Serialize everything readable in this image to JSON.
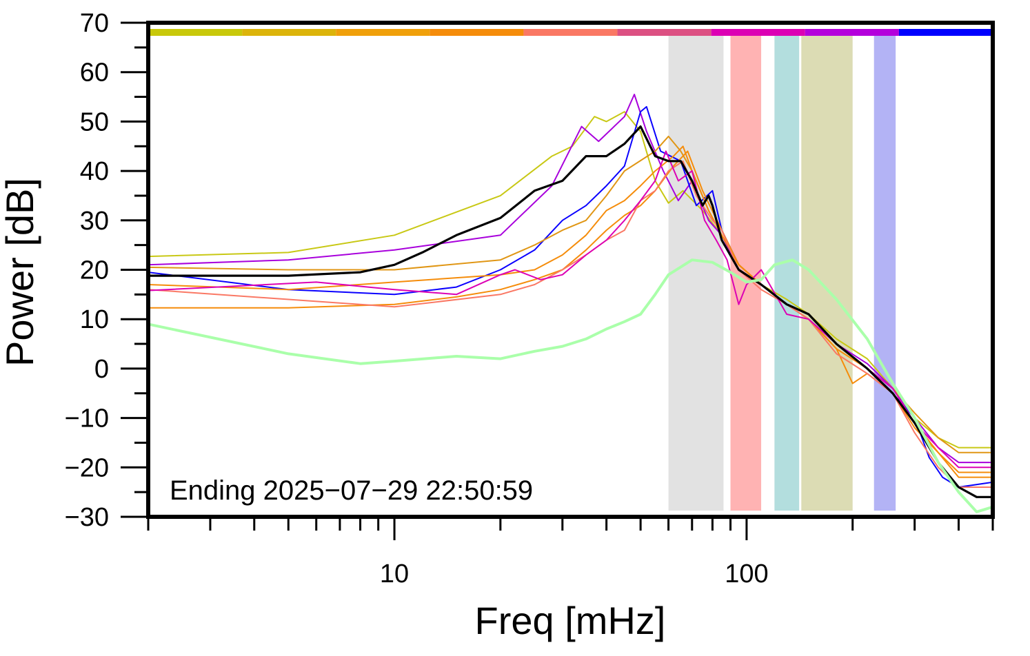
{
  "chart_data": {
    "type": "line",
    "xlabel": "Freq [mHz]",
    "ylabel": "Power [dB]",
    "xscale": "log",
    "xlim": [
      2,
      500
    ],
    "ylim": [
      -30,
      70
    ],
    "x_tick_labels": [
      {
        "v": 10,
        "t": "10"
      },
      {
        "v": 100,
        "t": "100"
      }
    ],
    "y_tick_labels": [
      {
        "v": 70,
        "t": "70"
      },
      {
        "v": 60,
        "t": "60"
      },
      {
        "v": 50,
        "t": "50"
      },
      {
        "v": 40,
        "t": "40"
      },
      {
        "v": 30,
        "t": "30"
      },
      {
        "v": 20,
        "t": "20"
      },
      {
        "v": 10,
        "t": "10"
      },
      {
        "v": 0,
        "t": "0"
      },
      {
        "v": -10,
        "t": "−10"
      },
      {
        "v": -20,
        "t": "−20"
      },
      {
        "v": -30,
        "t": "−30"
      }
    ],
    "annotation": "Ending 2025−07−29 22:50:59",
    "grid": false,
    "bands": [
      {
        "x0": 60,
        "x1": 86,
        "color": "#e2e2e2"
      },
      {
        "x0": 90,
        "x1": 110,
        "color": "#ffb3b3"
      },
      {
        "x0": 120,
        "x1": 141,
        "color": "#b3dede"
      },
      {
        "x0": 143,
        "x1": 200,
        "color": "#dcdcb4"
      },
      {
        "x0": 230,
        "x1": 265,
        "color": "#b3b3f5"
      }
    ],
    "top_color_bar": [
      "#c8c80a",
      "#dcb40a",
      "#f0a00a",
      "#f58c0a",
      "#fa7864",
      "#dc5082",
      "#dc00b4",
      "#b400dc",
      "#0000ff"
    ],
    "series": [
      {
        "color": "#c8c814",
        "width": 2,
        "points": [
          [
            2,
            22.7
          ],
          [
            5,
            23.5
          ],
          [
            10,
            27
          ],
          [
            20,
            35
          ],
          [
            28,
            43
          ],
          [
            32,
            45
          ],
          [
            37,
            51
          ],
          [
            40,
            50
          ],
          [
            45,
            52
          ],
          [
            50,
            48
          ],
          [
            55,
            38
          ],
          [
            60,
            33.5
          ],
          [
            66,
            36
          ],
          [
            75,
            32
          ],
          [
            85,
            27
          ],
          [
            95,
            21
          ],
          [
            110,
            17
          ],
          [
            130,
            14
          ],
          [
            150,
            11
          ],
          [
            180,
            6
          ],
          [
            220,
            2
          ],
          [
            260,
            -4
          ],
          [
            300,
            -10
          ],
          [
            350,
            -14
          ],
          [
            400,
            -16
          ],
          [
            500,
            -16
          ]
        ]
      },
      {
        "color": "#a800dc",
        "width": 2,
        "points": [
          [
            2,
            21
          ],
          [
            5,
            22
          ],
          [
            10,
            24
          ],
          [
            20,
            27
          ],
          [
            28,
            37
          ],
          [
            34,
            49
          ],
          [
            38,
            46
          ],
          [
            45,
            51
          ],
          [
            48,
            55.5
          ],
          [
            52,
            48
          ],
          [
            58,
            40
          ],
          [
            64,
            34
          ],
          [
            70,
            38
          ],
          [
            78,
            30
          ],
          [
            85,
            27
          ],
          [
            95,
            20
          ],
          [
            110,
            17
          ],
          [
            130,
            13
          ],
          [
            150,
            11
          ],
          [
            180,
            5
          ],
          [
            220,
            1
          ],
          [
            260,
            -4
          ],
          [
            300,
            -10
          ],
          [
            350,
            -16
          ],
          [
            400,
            -19
          ],
          [
            500,
            -19
          ]
        ]
      },
      {
        "color": "#0a00ff",
        "width": 2,
        "points": [
          [
            2,
            19.5
          ],
          [
            5,
            16
          ],
          [
            10,
            15
          ],
          [
            15,
            16.5
          ],
          [
            20,
            20
          ],
          [
            25,
            24
          ],
          [
            30,
            30
          ],
          [
            35,
            33
          ],
          [
            40,
            37
          ],
          [
            45,
            41
          ],
          [
            50,
            52
          ],
          [
            52,
            53
          ],
          [
            57,
            44
          ],
          [
            65,
            42
          ],
          [
            72,
            33
          ],
          [
            80,
            36
          ],
          [
            85,
            28
          ],
          [
            95,
            21
          ],
          [
            110,
            17
          ],
          [
            130,
            13
          ],
          [
            150,
            10
          ],
          [
            180,
            5
          ],
          [
            220,
            0
          ],
          [
            260,
            -5
          ],
          [
            300,
            -10
          ],
          [
            330,
            -18
          ],
          [
            360,
            -22
          ],
          [
            400,
            -24
          ],
          [
            500,
            -23
          ]
        ]
      },
      {
        "color": "#e09614",
        "width": 2,
        "points": [
          [
            2,
            20.5
          ],
          [
            5,
            20
          ],
          [
            10,
            20
          ],
          [
            20,
            22
          ],
          [
            25,
            25
          ],
          [
            30,
            28
          ],
          [
            35,
            30
          ],
          [
            40,
            35
          ],
          [
            45,
            40
          ],
          [
            55,
            44
          ],
          [
            60,
            47
          ],
          [
            65,
            44
          ],
          [
            70,
            40
          ],
          [
            78,
            32
          ],
          [
            85,
            27
          ],
          [
            95,
            21
          ],
          [
            110,
            17
          ],
          [
            130,
            13
          ],
          [
            150,
            11
          ],
          [
            180,
            5
          ],
          [
            220,
            0
          ],
          [
            260,
            -4
          ],
          [
            300,
            -9
          ],
          [
            350,
            -14
          ],
          [
            400,
            -17
          ],
          [
            500,
            -17
          ]
        ]
      },
      {
        "color": "#f58c0a",
        "width": 2,
        "points": [
          [
            2,
            17
          ],
          [
            5,
            16
          ],
          [
            10,
            17.5
          ],
          [
            20,
            19
          ],
          [
            25,
            20
          ],
          [
            30,
            23
          ],
          [
            35,
            27
          ],
          [
            40,
            32
          ],
          [
            45,
            34
          ],
          [
            50,
            37
          ],
          [
            55,
            40
          ],
          [
            62,
            43
          ],
          [
            66,
            45
          ],
          [
            70,
            40
          ],
          [
            78,
            32
          ],
          [
            85,
            27
          ],
          [
            95,
            21
          ],
          [
            110,
            17
          ],
          [
            130,
            13
          ],
          [
            150,
            10
          ],
          [
            180,
            4
          ],
          [
            200,
            -3
          ],
          [
            220,
            -1
          ],
          [
            260,
            -5
          ],
          [
            300,
            -12
          ],
          [
            350,
            -17
          ],
          [
            400,
            -21
          ],
          [
            500,
            -21
          ]
        ]
      },
      {
        "color": "#f58c0a",
        "width": 2,
        "points": [
          [
            2,
            12.3
          ],
          [
            5,
            12.3
          ],
          [
            10,
            13
          ],
          [
            15,
            14.5
          ],
          [
            20,
            16
          ],
          [
            25,
            18
          ],
          [
            30,
            20
          ],
          [
            35,
            24
          ],
          [
            40,
            28
          ],
          [
            45,
            31
          ],
          [
            50,
            33
          ],
          [
            55,
            36
          ],
          [
            62,
            41
          ],
          [
            68,
            44
          ],
          [
            75,
            36
          ],
          [
            85,
            28
          ],
          [
            95,
            21
          ],
          [
            110,
            17
          ],
          [
            130,
            13
          ],
          [
            150,
            10
          ],
          [
            180,
            4
          ],
          [
            220,
            0
          ],
          [
            260,
            -5
          ],
          [
            300,
            -11
          ],
          [
            350,
            -17
          ],
          [
            400,
            -22
          ],
          [
            500,
            -22
          ]
        ]
      },
      {
        "color": "#fa7864",
        "width": 2,
        "points": [
          [
            2,
            16
          ],
          [
            5,
            14
          ],
          [
            10,
            12.5
          ],
          [
            20,
            15
          ],
          [
            25,
            17
          ],
          [
            30,
            20
          ],
          [
            35,
            23
          ],
          [
            40,
            26
          ],
          [
            45,
            28
          ],
          [
            50,
            34
          ],
          [
            55,
            36
          ],
          [
            60,
            40
          ],
          [
            66,
            42
          ],
          [
            72,
            35
          ],
          [
            80,
            30
          ],
          [
            85,
            28
          ],
          [
            95,
            20
          ],
          [
            110,
            16
          ],
          [
            130,
            13
          ],
          [
            150,
            10
          ],
          [
            180,
            3
          ],
          [
            220,
            -1
          ],
          [
            260,
            -5
          ],
          [
            300,
            -13
          ],
          [
            350,
            -20
          ],
          [
            400,
            -24
          ],
          [
            500,
            -24
          ]
        ]
      },
      {
        "color": "#dc00b4",
        "width": 2,
        "points": [
          [
            2,
            15.8
          ],
          [
            6,
            17.5
          ],
          [
            10,
            16
          ],
          [
            15,
            15
          ],
          [
            20,
            19
          ],
          [
            22,
            20
          ],
          [
            26,
            18
          ],
          [
            30,
            19
          ],
          [
            35,
            23
          ],
          [
            40,
            26
          ],
          [
            45,
            30
          ],
          [
            50,
            34
          ],
          [
            55,
            38
          ],
          [
            59,
            44
          ],
          [
            64,
            38
          ],
          [
            70,
            40
          ],
          [
            76,
            30
          ],
          [
            82,
            26
          ],
          [
            88,
            22
          ],
          [
            95,
            13
          ],
          [
            100,
            17
          ],
          [
            110,
            20
          ],
          [
            130,
            11
          ],
          [
            150,
            10
          ],
          [
            180,
            5
          ],
          [
            220,
            0
          ],
          [
            260,
            -4
          ],
          [
            300,
            -11
          ],
          [
            350,
            -16
          ],
          [
            400,
            -20
          ],
          [
            500,
            -20
          ]
        ]
      },
      {
        "color": "#000000",
        "width": 3.2,
        "points": [
          [
            2,
            18.8
          ],
          [
            5,
            18.8
          ],
          [
            8,
            19.5
          ],
          [
            10,
            21
          ],
          [
            12,
            23.5
          ],
          [
            15,
            27
          ],
          [
            20,
            30.5
          ],
          [
            25,
            36
          ],
          [
            30,
            38
          ],
          [
            35,
            43
          ],
          [
            40,
            43
          ],
          [
            45,
            45.5
          ],
          [
            50,
            49
          ],
          [
            55,
            43
          ],
          [
            60,
            42
          ],
          [
            65,
            42
          ],
          [
            70,
            38
          ],
          [
            75,
            33
          ],
          [
            78,
            35
          ],
          [
            80,
            33
          ],
          [
            85,
            26
          ],
          [
            95,
            20
          ],
          [
            110,
            17
          ],
          [
            130,
            13
          ],
          [
            150,
            11
          ],
          [
            180,
            5
          ],
          [
            220,
            0
          ],
          [
            260,
            -5
          ],
          [
            300,
            -11
          ],
          [
            350,
            -19
          ],
          [
            400,
            -24
          ],
          [
            450,
            -26
          ],
          [
            500,
            -26
          ]
        ]
      },
      {
        "color": "#aaffaa",
        "width": 4,
        "points": [
          [
            2,
            9
          ],
          [
            5,
            3
          ],
          [
            8,
            1
          ],
          [
            10,
            1.5
          ],
          [
            15,
            2.5
          ],
          [
            20,
            2
          ],
          [
            25,
            3.5
          ],
          [
            30,
            4.5
          ],
          [
            35,
            6
          ],
          [
            40,
            8
          ],
          [
            45,
            9.5
          ],
          [
            50,
            11
          ],
          [
            55,
            15
          ],
          [
            60,
            19
          ],
          [
            70,
            22
          ],
          [
            80,
            21.5
          ],
          [
            90,
            19.5
          ],
          [
            100,
            17.5
          ],
          [
            110,
            18
          ],
          [
            120,
            21
          ],
          [
            135,
            22
          ],
          [
            150,
            20
          ],
          [
            180,
            14
          ],
          [
            220,
            6
          ],
          [
            260,
            -3
          ],
          [
            300,
            -10
          ],
          [
            350,
            -19
          ],
          [
            400,
            -25
          ],
          [
            450,
            -29
          ],
          [
            500,
            -28
          ]
        ]
      }
    ]
  }
}
